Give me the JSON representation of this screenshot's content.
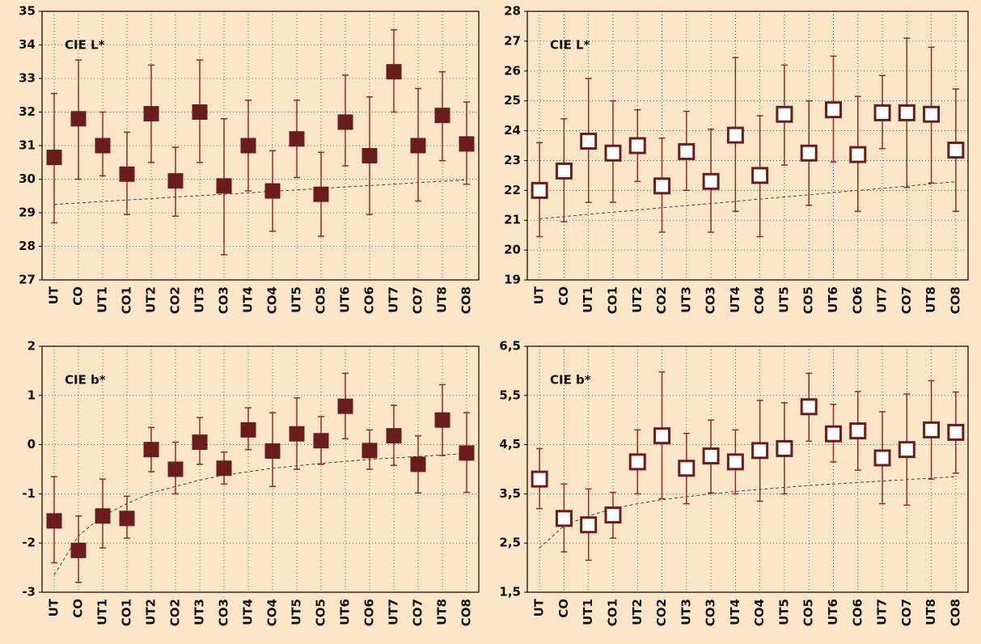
{
  "chart_data": [
    {
      "type": "errorbar",
      "annotation": "CIE L*",
      "marker": "filled",
      "color": "#6b1c1c",
      "whisker_color": "#8e2b2b",
      "categories": [
        "UT",
        "CO",
        "UT1",
        "CO1",
        "UT2",
        "CO2",
        "UT3",
        "CO3",
        "UT4",
        "CO4",
        "UT5",
        "CO5",
        "UT6",
        "CO6",
        "UT7",
        "CO7",
        "UT8",
        "CO8"
      ],
      "values": [
        30.65,
        31.8,
        31.0,
        30.15,
        31.95,
        29.95,
        32.0,
        29.8,
        31.0,
        29.65,
        31.2,
        29.55,
        31.7,
        30.7,
        33.2,
        31.0,
        31.9,
        31.05
      ],
      "lower": [
        28.7,
        30.0,
        30.1,
        28.95,
        30.5,
        28.9,
        30.5,
        27.75,
        29.65,
        28.45,
        30.05,
        28.3,
        30.4,
        28.95,
        32.0,
        29.35,
        30.55,
        29.85
      ],
      "upper": [
        32.55,
        33.55,
        32.0,
        31.4,
        33.4,
        30.95,
        33.55,
        31.8,
        32.35,
        30.85,
        32.35,
        30.8,
        33.1,
        32.45,
        34.45,
        32.7,
        33.2,
        32.3
      ],
      "trend": [
        29.25,
        29.29,
        29.34,
        29.38,
        29.42,
        29.47,
        29.51,
        29.55,
        29.59,
        29.64,
        29.68,
        29.72,
        29.77,
        29.81,
        29.85,
        29.9,
        29.94,
        29.98
      ],
      "ylim": [
        27,
        35
      ],
      "yticks": [
        27,
        28,
        29,
        30,
        31,
        32,
        33,
        34,
        35
      ],
      "grid": true
    },
    {
      "type": "errorbar",
      "annotation": "CIE L*",
      "marker": "open",
      "color": "#6b1c1c",
      "whisker_color": "#8e2b2b",
      "categories": [
        "UT",
        "CO",
        "UT1",
        "CO1",
        "UT2",
        "CO2",
        "UT3",
        "CO3",
        "UT4",
        "CO4",
        "UT5",
        "CO5",
        "UT6",
        "CO6",
        "UT7",
        "CO7",
        "UT8",
        "CO8"
      ],
      "values": [
        22.0,
        22.65,
        23.65,
        23.25,
        23.5,
        22.15,
        23.3,
        22.3,
        23.85,
        22.5,
        24.55,
        23.25,
        24.7,
        23.2,
        24.6,
        24.6,
        24.55,
        23.35
      ],
      "lower": [
        20.45,
        20.95,
        21.6,
        21.6,
        22.3,
        20.6,
        22.0,
        20.6,
        21.3,
        20.45,
        22.85,
        21.5,
        22.95,
        21.3,
        23.4,
        22.1,
        22.25,
        21.3
      ],
      "upper": [
        23.6,
        24.4,
        25.75,
        25.0,
        24.7,
        23.75,
        24.65,
        24.05,
        26.45,
        24.5,
        26.2,
        25.0,
        26.5,
        25.15,
        25.85,
        27.1,
        26.8,
        25.4
      ],
      "trend": [
        21.05,
        21.12,
        21.2,
        21.27,
        21.34,
        21.42,
        21.49,
        21.56,
        21.63,
        21.71,
        21.78,
        21.85,
        21.93,
        22.0,
        22.07,
        22.14,
        22.22,
        22.29
      ],
      "ylim": [
        19,
        28
      ],
      "yticks": [
        19,
        20,
        21,
        22,
        23,
        24,
        25,
        26,
        27,
        28
      ],
      "grid": true
    },
    {
      "type": "errorbar",
      "annotation": "CIE b*",
      "marker": "filled",
      "color": "#6b1c1c",
      "whisker_color": "#8e2b2b",
      "categories": [
        "UT",
        "CO",
        "UT1",
        "CO1",
        "UT2",
        "CO2",
        "UT3",
        "CO3",
        "UT4",
        "CO4",
        "UT5",
        "CO5",
        "UT6",
        "CO6",
        "UT7",
        "CO7",
        "UT8",
        "CO8"
      ],
      "values": [
        -1.55,
        -2.15,
        -1.45,
        -1.5,
        -0.1,
        -0.5,
        0.05,
        -0.48,
        0.3,
        -0.13,
        0.22,
        0.08,
        0.78,
        -0.12,
        0.18,
        -0.4,
        0.5,
        -0.17
      ],
      "lower": [
        -2.4,
        -2.8,
        -2.1,
        -1.9,
        -0.55,
        -1.0,
        -0.4,
        -0.8,
        -0.1,
        -0.85,
        -0.5,
        -0.4,
        0.12,
        -0.5,
        -0.42,
        -0.98,
        -0.22,
        -0.97
      ],
      "upper": [
        -0.65,
        -1.45,
        -0.7,
        -1.05,
        0.35,
        0.05,
        0.55,
        -0.15,
        0.75,
        0.65,
        0.95,
        0.57,
        1.45,
        0.3,
        0.8,
        0.18,
        1.22,
        0.65
      ],
      "trend": [
        -2.65,
        -1.85,
        -1.45,
        -1.2,
        -0.98,
        -0.85,
        -0.72,
        -0.62,
        -0.55,
        -0.48,
        -0.43,
        -0.38,
        -0.34,
        -0.3,
        -0.27,
        -0.24,
        -0.21,
        -0.18
      ],
      "ylim": [
        -3,
        2
      ],
      "yticks": [
        -3,
        -2,
        -1,
        0,
        1,
        2
      ],
      "grid": true
    },
    {
      "type": "errorbar",
      "annotation": "CIE b*",
      "marker": "open",
      "color": "#6b1c1c",
      "whisker_color": "#8e2b2b",
      "categories": [
        "UT",
        "CO",
        "UT1",
        "CO1",
        "UT2",
        "CO2",
        "UT3",
        "CO3",
        "UT4",
        "CO4",
        "UT5",
        "CO5",
        "UT6",
        "CO6",
        "UT7",
        "CO7",
        "UT8",
        "CO8"
      ],
      "values": [
        3.8,
        3.0,
        2.87,
        3.07,
        4.15,
        4.68,
        4.02,
        4.27,
        4.15,
        4.38,
        4.42,
        5.27,
        4.72,
        4.78,
        4.23,
        4.4,
        4.8,
        4.75
      ],
      "lower": [
        3.2,
        2.32,
        2.15,
        2.6,
        3.5,
        3.4,
        3.3,
        3.52,
        3.5,
        3.35,
        3.5,
        4.57,
        4.15,
        3.98,
        3.3,
        3.27,
        3.8,
        3.92
      ],
      "upper": [
        4.42,
        3.7,
        3.6,
        3.53,
        4.8,
        5.98,
        4.73,
        5.0,
        4.8,
        5.4,
        5.35,
        5.95,
        5.32,
        5.58,
        5.17,
        5.53,
        5.8,
        5.57
      ],
      "trend": [
        2.4,
        2.85,
        3.05,
        3.2,
        3.3,
        3.38,
        3.44,
        3.5,
        3.55,
        3.59,
        3.63,
        3.67,
        3.7,
        3.73,
        3.76,
        3.79,
        3.82,
        3.85
      ],
      "ylim": [
        1.5,
        6.5
      ],
      "yticks": [
        {
          "value": 1.5,
          "label": "1,5"
        },
        {
          "value": 2.5,
          "label": "2,5"
        },
        {
          "value": 3.5,
          "label": "3,5"
        },
        {
          "value": 4.5,
          "label": "4,5"
        },
        {
          "value": 5.5,
          "label": "5,5"
        },
        {
          "value": 6.5,
          "label": "6,5"
        }
      ],
      "grid": true
    }
  ]
}
